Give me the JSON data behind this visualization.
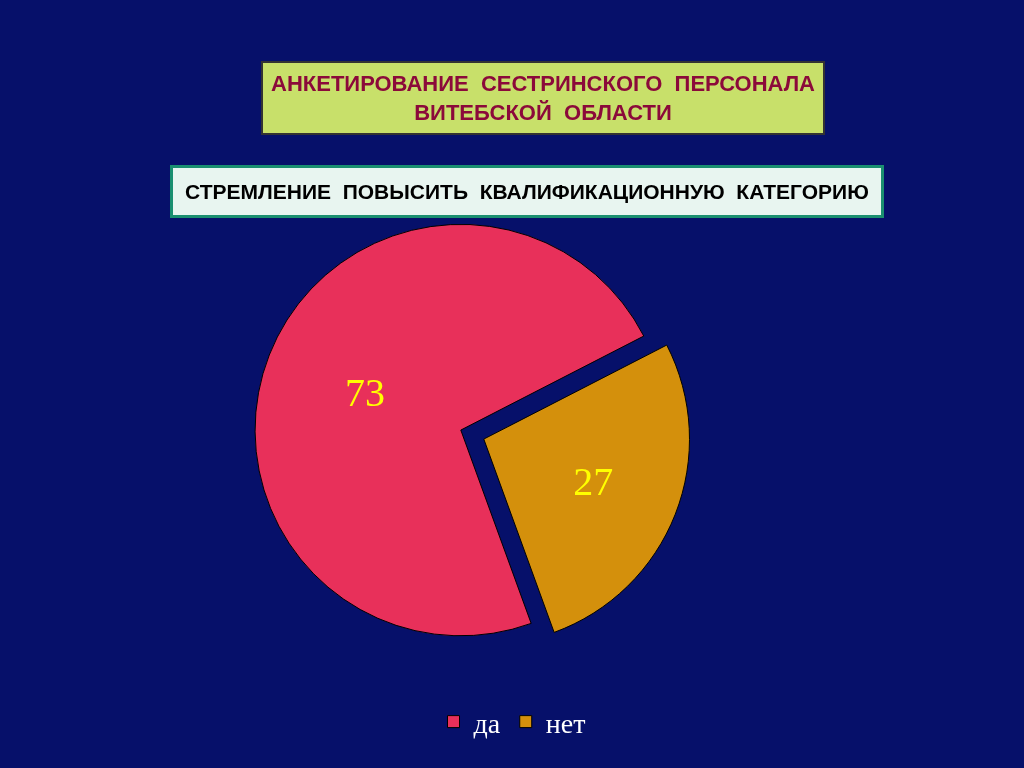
{
  "chart_data": {
    "type": "pie",
    "title": "АНКЕТИРОВАНИЕ  СЕСТРИНСКОГО  ПЕРСОНАЛА\nВИТЕБСКОЙ  ОБЛАСТИ",
    "subtitle": "СТРЕМЛЕНИЕ  ПОВЫСИТЬ  КВАЛИФИКАЦИОННУЮ  КАТЕГОРИЮ",
    "categories": [
      "да",
      "нет"
    ],
    "values": [
      73,
      27
    ],
    "colors": [
      "#e8305a",
      "#d4900c"
    ],
    "data_labels": true,
    "legend": "bottom"
  }
}
